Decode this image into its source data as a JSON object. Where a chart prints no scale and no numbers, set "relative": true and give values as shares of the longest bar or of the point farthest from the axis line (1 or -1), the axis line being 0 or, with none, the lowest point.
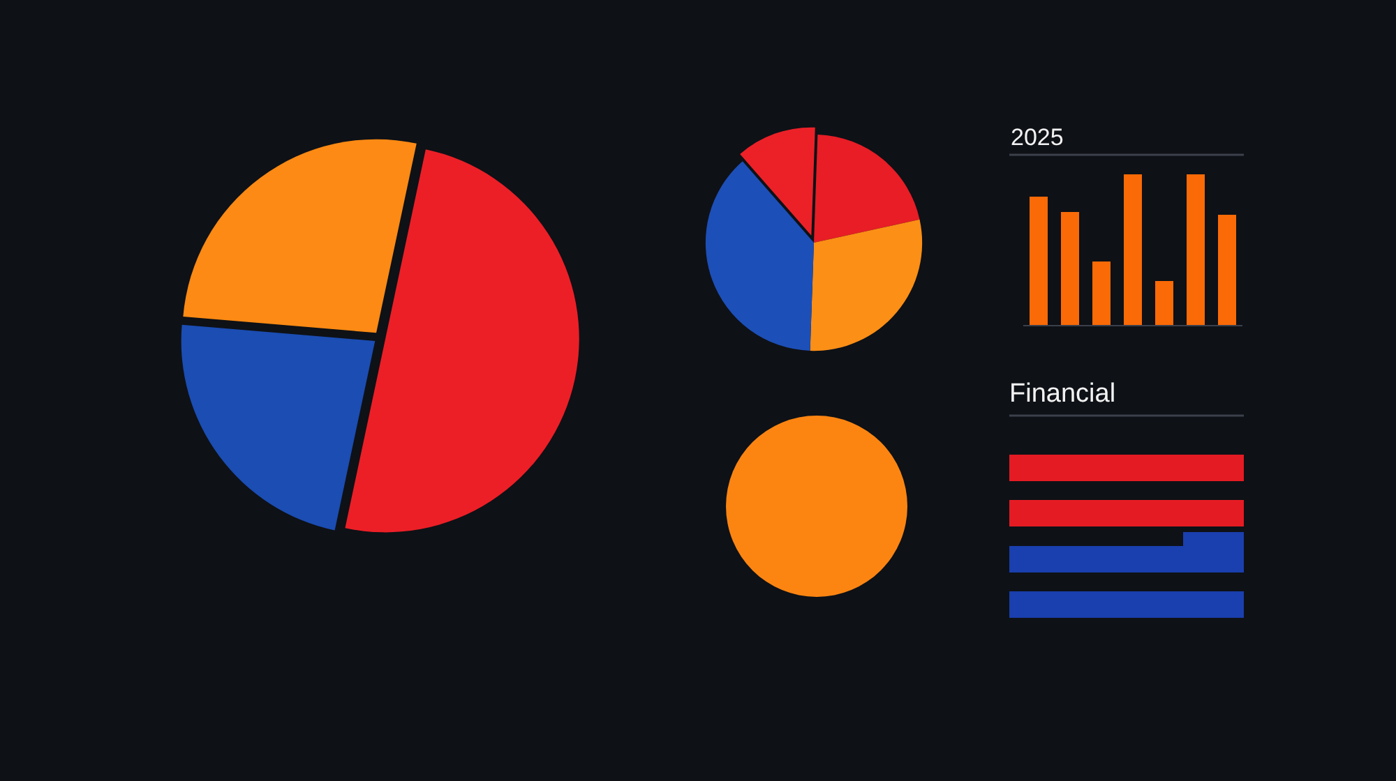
{
  "chart_data": [
    {
      "type": "pie",
      "categories": [
        null,
        null,
        null
      ],
      "values": [
        50,
        23,
        27
      ],
      "colors": [
        "#ec1f27",
        "#1b4db3",
        "#fc8a14"
      ]
    },
    {
      "type": "pie",
      "categories": [
        null,
        null,
        null,
        null
      ],
      "values": [
        21,
        29,
        38,
        12
      ],
      "colors": [
        "#e81d26",
        "#fc8f16",
        "#1d4fb8",
        "#ec2128"
      ]
    },
    {
      "type": "bar",
      "title": "2025",
      "categories": [
        null,
        null,
        null,
        null,
        null,
        null,
        null
      ],
      "values": [
        0.85,
        0.75,
        0.42,
        1,
        0.29,
        1,
        0.73
      ],
      "color": "#fa6a06",
      "relative": true
    },
    {
      "type": "pie",
      "categories": [
        null
      ],
      "values": [
        100
      ],
      "colors": [
        "#fc8512"
      ]
    },
    {
      "type": "bar",
      "title": "Financial",
      "orientation": "horizontal",
      "stacked": true,
      "categories": [
        null,
        null,
        null,
        null
      ],
      "series": [
        {
          "color": "#e51b23",
          "values": [
            1,
            1,
            null,
            null
          ]
        },
        {
          "color": "#1a3fae",
          "values": [
            null,
            null,
            0.74,
            1
          ]
        },
        {
          "color": "#1a3fae",
          "values": [
            null,
            null,
            0.26,
            null
          ]
        }
      ],
      "relative": true
    }
  ]
}
